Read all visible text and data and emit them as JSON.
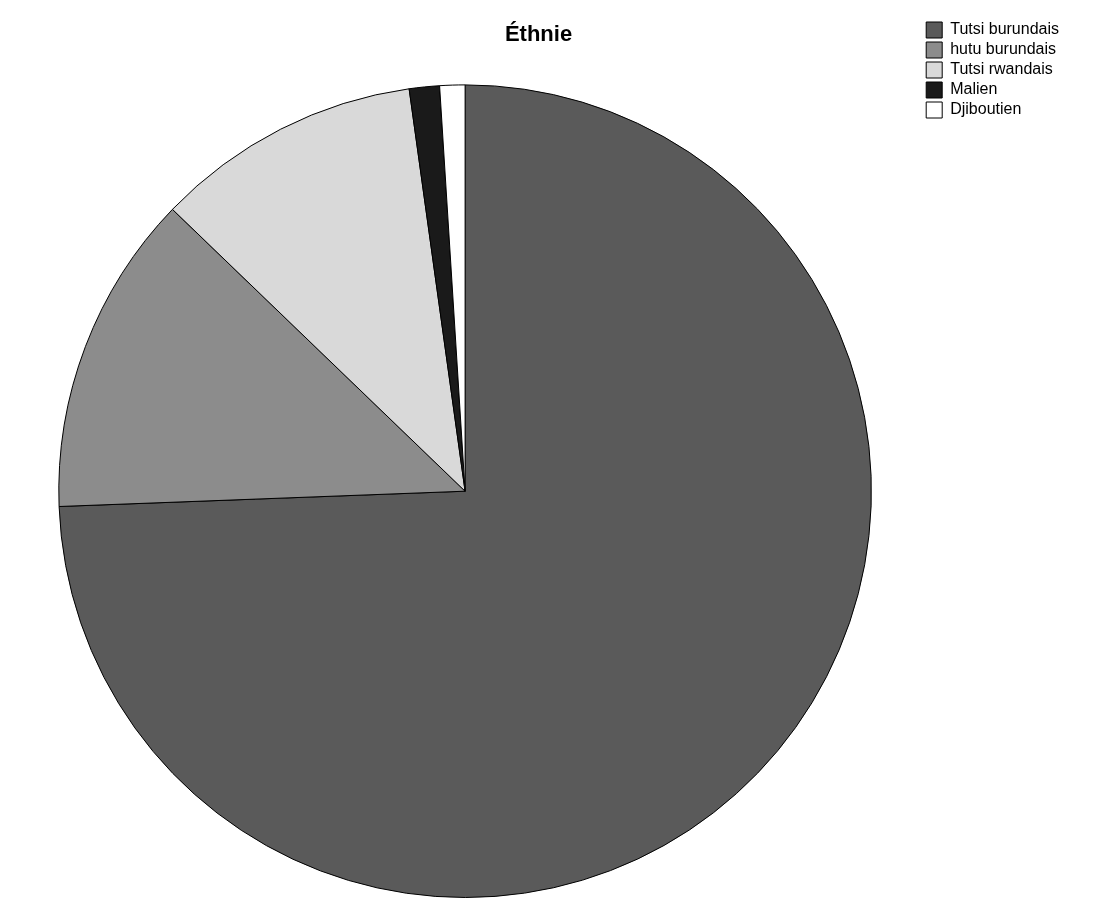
{
  "chart_data": {
    "type": "pie",
    "title": "Éthnie",
    "categories": [
      "Tutsi burundais",
      "hutu burundais",
      "Tutsi rwandais",
      "Malien",
      "Djiboutien"
    ],
    "values": [
      74.4,
      12.8,
      10.6,
      1.2,
      1.0
    ],
    "colors": [
      "#5a5a5a",
      "#8c8c8c",
      "#d9d9d9",
      "#1a1a1a",
      "#ffffff"
    ],
    "legend": "top right"
  }
}
